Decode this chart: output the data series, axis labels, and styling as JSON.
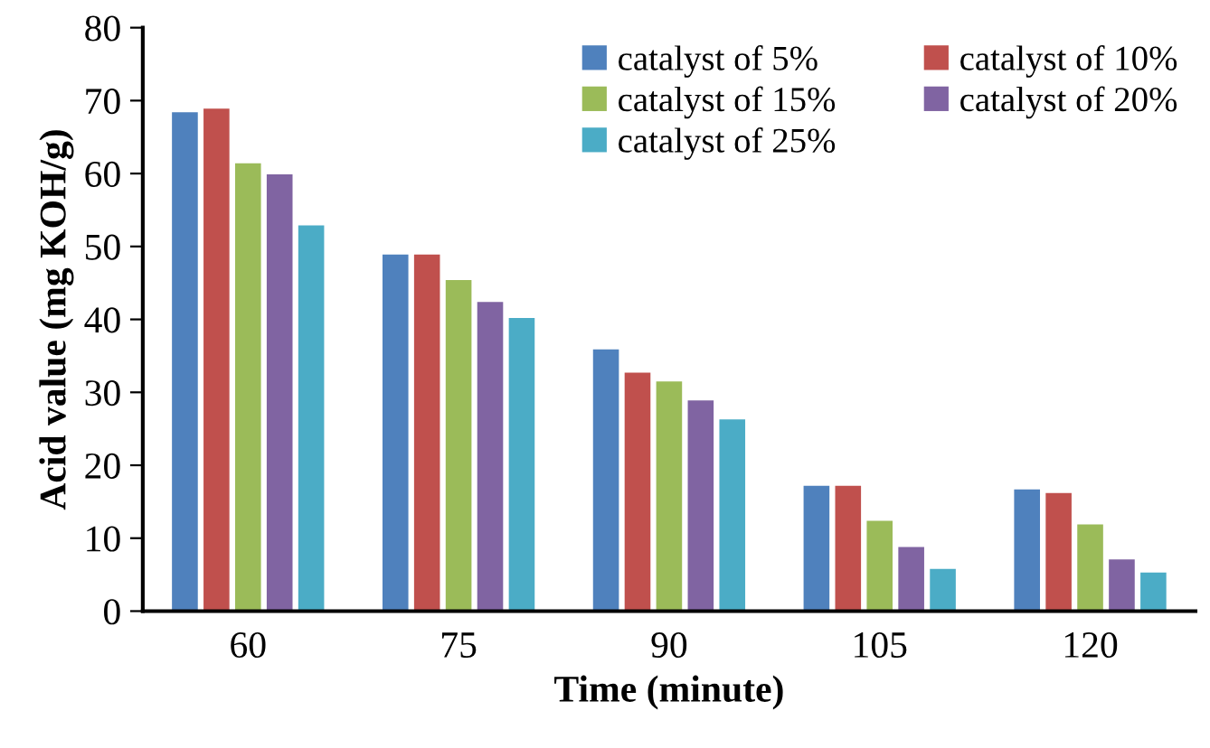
{
  "chart_data": {
    "type": "bar",
    "xlabel": "Time (minute)",
    "ylabel": "Acid value (mg KOH/g)",
    "categories": [
      "60",
      "75",
      "90",
      "105",
      "120"
    ],
    "series": [
      {
        "name": "catalyst of 5%",
        "color": "#4f81bd",
        "values": [
          68.5,
          49,
          36,
          17.3,
          16.8
        ]
      },
      {
        "name": "catalyst of 10%",
        "color": "#c0504d",
        "values": [
          69,
          49,
          32.8,
          17.3,
          16.3
        ]
      },
      {
        "name": "catalyst of 15%",
        "color": "#9bbb59",
        "values": [
          61.5,
          45.5,
          31.6,
          12.5,
          12
        ]
      },
      {
        "name": "catalyst of 20%",
        "color": "#8064a2",
        "values": [
          60,
          42.5,
          29,
          8.9,
          7.2
        ]
      },
      {
        "name": "catalyst of 25%",
        "color": "#4bacc6",
        "values": [
          53,
          40.3,
          26.4,
          5.9,
          5.4
        ]
      }
    ],
    "ylim": [
      0,
      80
    ],
    "yticks": [
      0,
      10,
      20,
      30,
      40,
      50,
      60,
      70,
      80
    ],
    "grid": false,
    "legend": "top right"
  }
}
